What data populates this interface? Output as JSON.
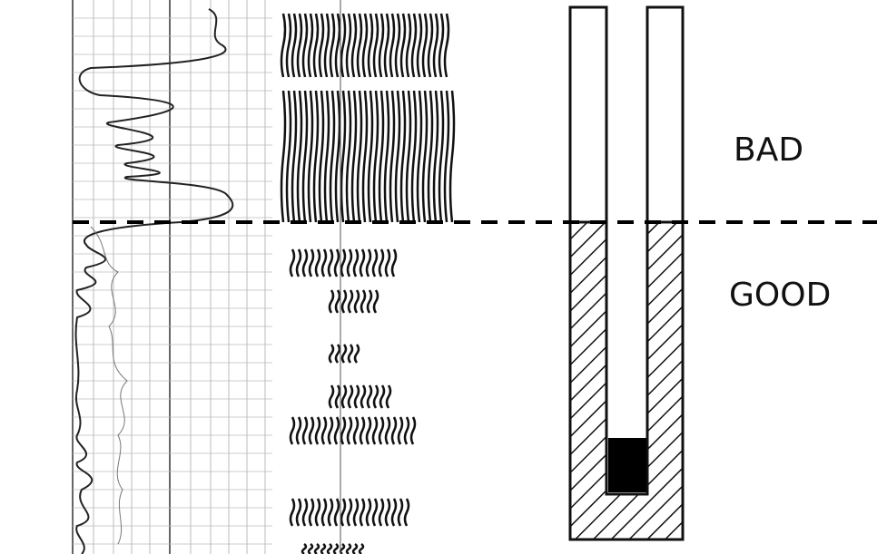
{
  "labels": {
    "bad": "BAD",
    "good": "GOOD"
  }
}
